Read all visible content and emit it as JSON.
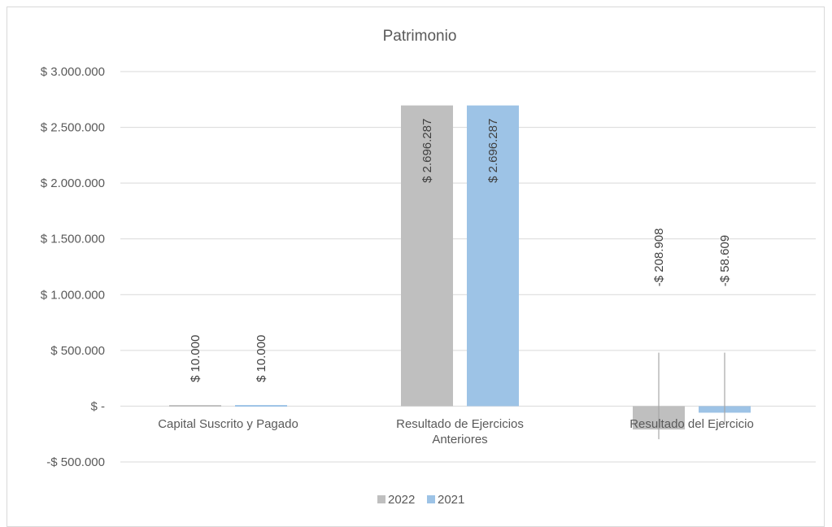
{
  "chart_data": {
    "type": "bar",
    "title": "Patrimonio",
    "categories": [
      [
        "Capital Suscrito y Pagado"
      ],
      [
        "Resultado de Ejercicios",
        "Anteriores"
      ],
      [
        "Resultado del Ejercicio"
      ]
    ],
    "series": [
      {
        "name": "2022",
        "color": "#bfbfbf",
        "values": [
          10000,
          2696287,
          -208908
        ],
        "labels": [
          "$ 10.000",
          "$ 2.696.287",
          "-$ 208.908"
        ]
      },
      {
        "name": "2021",
        "color": "#9dc3e6",
        "values": [
          10000,
          2696287,
          -58609
        ],
        "labels": [
          "$ 10.000",
          "$ 2.696.287",
          "-$ 58.609"
        ]
      }
    ],
    "yticks": [
      {
        "value": 3000000,
        "label": "$ 3.000.000"
      },
      {
        "value": 2500000,
        "label": "$ 2.500.000"
      },
      {
        "value": 2000000,
        "label": "$ 2.000.000"
      },
      {
        "value": 1500000,
        "label": "$ 1.500.000"
      },
      {
        "value": 1000000,
        "label": "$ 1.000.000"
      },
      {
        "value": 500000,
        "label": "$ 500.000"
      },
      {
        "value": 0,
        "label": "$ -"
      },
      {
        "value": -500000,
        "label": "-$ 500.000"
      }
    ],
    "ylim": [
      -500000,
      3000000
    ],
    "grid": true,
    "legend_position": "bottom"
  }
}
